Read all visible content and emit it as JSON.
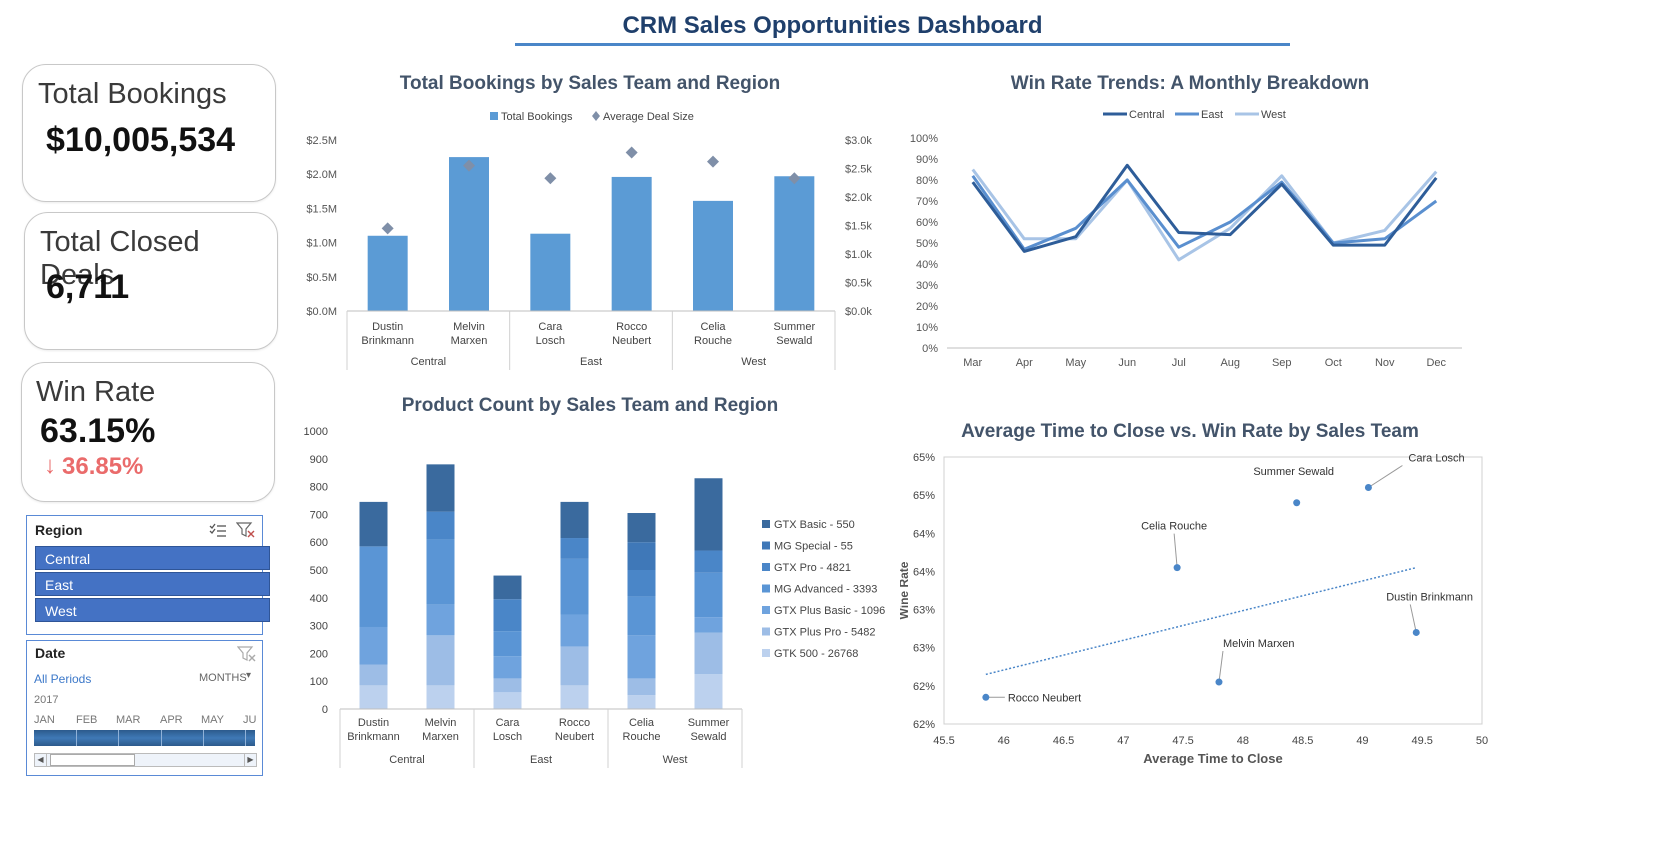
{
  "dashboard": {
    "title": "CRM Sales Opportunities Dashboard"
  },
  "kpis": {
    "total_bookings": {
      "label": "Total Bookings",
      "value": "$10,005,534"
    },
    "total_closed_deals": {
      "label": "Total Closed Deals",
      "value": "6,711"
    },
    "win_rate": {
      "label": "Win Rate",
      "value": "63.15%",
      "loss_value": "36.85%",
      "loss_arrow": "↓"
    }
  },
  "region_slicer": {
    "title": "Region",
    "items": [
      "Central",
      "East",
      "West"
    ],
    "icons": [
      "multi-select-icon",
      "clear-filter-icon"
    ]
  },
  "date_slicer": {
    "title": "Date",
    "all_periods": "All Periods",
    "level": "MONTHS",
    "year": "2017",
    "months": [
      "JAN",
      "FEB",
      "MAR",
      "APR",
      "MAY",
      "JU"
    ]
  },
  "colors": {
    "accent": "#4a86c8",
    "bar": "#5b9bd5",
    "marker": "#7f8fa8",
    "loss": "#ea6b6b",
    "slicer_item": "#4472c4"
  },
  "chart_data": [
    {
      "type": "bar",
      "title": "Total Bookings by Sales Team and Region",
      "legend": [
        "Total Bookings",
        "Average Deal Size"
      ],
      "legend_position": "top",
      "categories": [
        "Dustin Brinkmann",
        "Melvin Marxen",
        "Cara Losch",
        "Rocco Neubert",
        "Celia Rouche",
        "Summer Sewald"
      ],
      "groups": [
        {
          "name": "Central",
          "span": [
            0,
            1
          ]
        },
        {
          "name": "East",
          "span": [
            2,
            3
          ]
        },
        {
          "name": "West",
          "span": [
            4,
            5
          ]
        }
      ],
      "series": [
        {
          "name": "Total Bookings",
          "values": [
            1100000,
            2250000,
            1130000,
            1960000,
            1610000,
            1970000
          ],
          "axis": "left"
        },
        {
          "name": "Average Deal Size",
          "values": [
            1450,
            2550,
            2330,
            2780,
            2620,
            2330
          ],
          "axis": "right",
          "marker": "diamond"
        }
      ],
      "y_ticks": [
        "$0.0M",
        "$0.5M",
        "$1.0M",
        "$1.5M",
        "$2.0M",
        "$2.5M"
      ],
      "ylim": [
        0,
        2500000
      ],
      "y2_ticks": [
        "$0.0k",
        "$0.5k",
        "$1.0k",
        "$1.5k",
        "$2.0k",
        "$2.5k",
        "$3.0k"
      ],
      "y2lim": [
        0,
        3000
      ]
    },
    {
      "type": "line",
      "title": "Win Rate Trends: A Monthly  Breakdown",
      "legend_position": "top",
      "x": [
        "Mar",
        "Apr",
        "May",
        "Jun",
        "Jul",
        "Aug",
        "Sep",
        "Oct",
        "Nov",
        "Dec"
      ],
      "series": [
        {
          "name": "Central",
          "values": [
            79,
            46,
            53,
            87,
            55,
            54,
            78,
            49,
            49,
            81
          ],
          "color": "#2e5d99"
        },
        {
          "name": "East",
          "values": [
            82,
            47,
            57,
            80,
            48,
            60,
            79,
            50,
            52,
            70
          ],
          "color": "#5a8fcf"
        },
        {
          "name": "West",
          "values": [
            85,
            52,
            52,
            80,
            42,
            57,
            82,
            50,
            56,
            84
          ],
          "color": "#a8c4e6"
        }
      ],
      "y_ticks": [
        "0%",
        "10%",
        "20%",
        "30%",
        "40%",
        "50%",
        "60%",
        "70%",
        "80%",
        "90%",
        "100%"
      ],
      "ylim": [
        0,
        100
      ]
    },
    {
      "type": "bar",
      "stacked": true,
      "title": "Product Count by Sales Team and Region",
      "legend_position": "right",
      "categories": [
        "Dustin Brinkmann",
        "Melvin Marxen",
        "Cara Losch",
        "Rocco Neubert",
        "Celia Rouche",
        "Summer Sewald"
      ],
      "groups": [
        {
          "name": "Central",
          "span": [
            0,
            1
          ]
        },
        {
          "name": "East",
          "span": [
            2,
            3
          ]
        },
        {
          "name": "West",
          "span": [
            4,
            5
          ]
        }
      ],
      "series": [
        {
          "name": "GTK 500 - 26768",
          "values": [
            85,
            85,
            60,
            85,
            50,
            125
          ],
          "color": "#bcd1ee"
        },
        {
          "name": "GTX Plus Pro - 5482",
          "values": [
            75,
            180,
            50,
            140,
            60,
            150
          ],
          "color": "#9dbde6"
        },
        {
          "name": "GTX Plus Basic - 1096",
          "values": [
            135,
            110,
            80,
            115,
            155,
            55
          ],
          "color": "#6fa3de"
        },
        {
          "name": "MG Advanced - 3393",
          "values": [
            290,
            235,
            90,
            200,
            140,
            160
          ],
          "color": "#5a95d5"
        },
        {
          "name": "GTX Pro - 4821",
          "values": [
            0,
            100,
            115,
            75,
            95,
            80
          ],
          "color": "#4a86c8"
        },
        {
          "name": "MG Special - 55",
          "values": [
            0,
            0,
            0,
            0,
            100,
            0
          ],
          "color": "#3f78b8"
        },
        {
          "name": "GTX Basic - 550",
          "values": [
            160,
            170,
            85,
            130,
            105,
            260
          ],
          "color": "#3a6a9e"
        }
      ],
      "y_ticks": [
        "0",
        "100",
        "200",
        "300",
        "400",
        "500",
        "600",
        "700",
        "800",
        "900",
        "1000"
      ],
      "ylim": [
        0,
        1000
      ]
    },
    {
      "type": "scatter",
      "title": "Average Time to Close vs. Win Rate by Sales Team",
      "xlabel": "Average Time to Close",
      "ylabel": "Wine Rate",
      "points": [
        {
          "label": "Rocco Neubert",
          "x": 45.85,
          "y": 62.1
        },
        {
          "label": "Celia Rouche",
          "x": 47.45,
          "y": 63.8
        },
        {
          "label": "Melvin Marxen",
          "x": 47.8,
          "y": 62.3
        },
        {
          "label": "Summer Sewald",
          "x": 48.45,
          "y": 64.65
        },
        {
          "label": "Cara Losch",
          "x": 49.05,
          "y": 64.85
        },
        {
          "label": "Dustin Brinkmann",
          "x": 49.45,
          "y": 62.95
        }
      ],
      "trendline": {
        "from": [
          45.85,
          62.4
        ],
        "to": [
          49.45,
          63.8
        ],
        "style": "dotted"
      },
      "x_ticks": [
        "45.5",
        "46",
        "46.5",
        "47",
        "47.5",
        "48",
        "48.5",
        "49",
        "49.5",
        "50"
      ],
      "xlim": [
        45.5,
        50
      ],
      "y_ticks": [
        "62%",
        "62%",
        "63%",
        "63%",
        "64%",
        "64%",
        "65%",
        "65%"
      ],
      "ylim": [
        61.75,
        65.25
      ]
    }
  ]
}
